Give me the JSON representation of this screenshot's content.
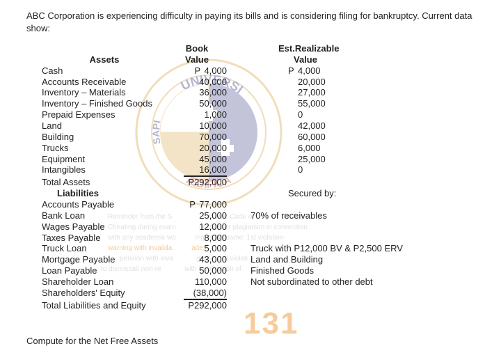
{
  "intro": "ABC Corporation is experiencing difficulty in paying its bills and is considering filing for bankruptcy. Current data show:",
  "headers": {
    "assets": "Assets",
    "book_value": "Book Value",
    "realizable": "Est.Realizable Value",
    "liabilities": "Liabilities",
    "secured_by": "Secured by:"
  },
  "currency_prefix": "P",
  "assets": [
    {
      "name": "Cash",
      "bv": "4,000",
      "rv": "4,000",
      "bv_prefix": "P",
      "rv_prefix": "P"
    },
    {
      "name": "Accounts Receivable",
      "bv": "40,000",
      "rv": "20,000"
    },
    {
      "name": "Inventory – Materials",
      "bv": "36,000",
      "rv": "27,000"
    },
    {
      "name": "Inventory – Finished Goods",
      "bv": "50,000",
      "rv": "55,000"
    },
    {
      "name": "Prepaid Expenses",
      "bv": "1,000",
      "rv": "0"
    },
    {
      "name": "Land",
      "bv": "10,000",
      "rv": "42,000"
    },
    {
      "name": "Building",
      "bv": "70,000",
      "rv": "60,000"
    },
    {
      "name": "Trucks",
      "bv": "20,000",
      "rv": "6,000"
    },
    {
      "name": "Equipment",
      "bv": "45,000",
      "rv": "25,000"
    },
    {
      "name": "Intangibles",
      "bv": "16,000",
      "rv": "0"
    }
  ],
  "assets_total": {
    "name": "Total Assets",
    "bv": "292,000",
    "bv_prefix": "P"
  },
  "liabilities": [
    {
      "name": "Accounts Payable",
      "bv": "77,000",
      "bv_prefix": "P",
      "note": ""
    },
    {
      "name": "Bank Loan",
      "bv": "25,000",
      "note": "70% of receivables"
    },
    {
      "name": "Wages Payable",
      "bv": "12,000",
      "note": ""
    },
    {
      "name": "Taxes Payable",
      "bv": "8,000",
      "note": ""
    },
    {
      "name": "Truck Loan",
      "bv": "5,000",
      "note": "Truck with P12,000 BV & P2,500 ERV"
    },
    {
      "name": "Mortgage Payable",
      "bv": "43,000",
      "note": "Land and Building"
    },
    {
      "name": "Loan Payable",
      "bv": "50,000",
      "note": "Finished Goods"
    },
    {
      "name": "Shareholder Loan",
      "bv": "110,000",
      "note": "Not subordinated to other debt"
    },
    {
      "name": "Shareholders' Equity",
      "bv": "(38,000)",
      "note": ""
    }
  ],
  "liabilities_total": {
    "name": "Total Liabilities and Equity",
    "bv": "292,000",
    "bv_prefix": "P"
  },
  "footer": "Compute for the Net Free Assets",
  "watermarks": {
    "course_code": "131",
    "seal_outer": "UNIVERSI",
    "seal_inner": "ÆDIFICA",
    "seal_left": "SAPI",
    "reminder": "Reminder from the S",
    "reminder2": "ndbook: Code of",
    "cheating": "Cheating during exam",
    "cheating2": "quizzes or plagiarism in connection",
    "academic": "with any academic wo",
    "academic2": "ing of the same: 1st violation-",
    "warning": "warning with invalida",
    "warning2": "ade;",
    "pension": "pension with inva",
    "pension2": "grade; 3rd violati",
    "dismiss": "to dismissal/ non-re",
    "dismiss2": "with invalidation of"
  },
  "style": {
    "page_bg": "#ffffff",
    "text_color": "#222222",
    "font_size_body": 13,
    "font_size_wm_large": 44,
    "wm_large_color": "#f09a3b",
    "wm_seal_gold": "#d9a13b",
    "wm_seal_blue": "#2b2e7b",
    "wm_seal_white": "#ffffff",
    "wm_gray": "#cccccc"
  }
}
